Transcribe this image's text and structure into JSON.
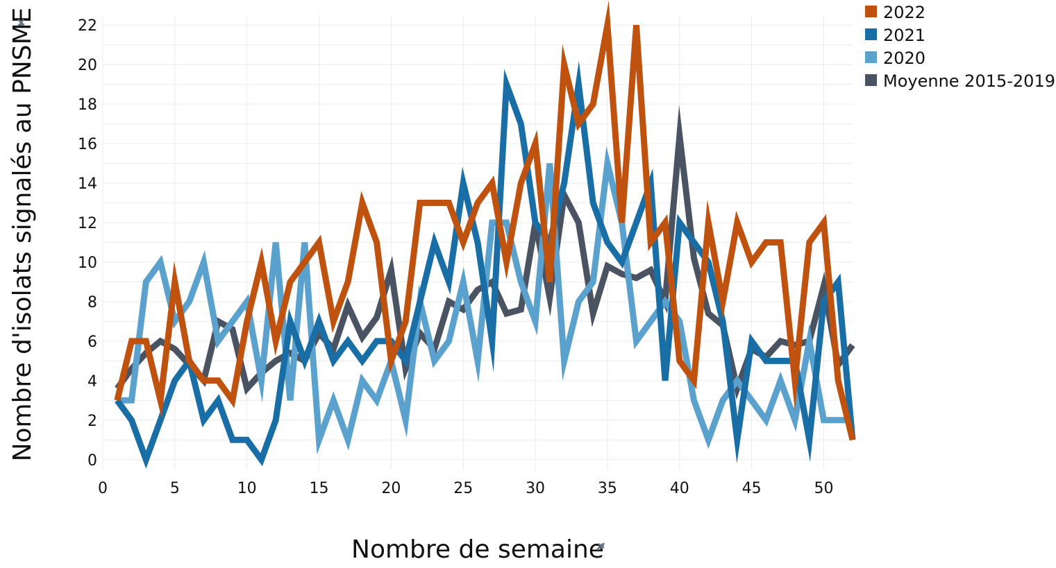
{
  "chart_data": {
    "type": "line",
    "xlabel": "Nombre de semaine",
    "ylabel": "Nombre d'isolats signalés au PNSME",
    "xlim": [
      0,
      52
    ],
    "ylim": [
      -0.5,
      22.5
    ],
    "x_ticks": [
      0,
      5,
      10,
      15,
      20,
      25,
      30,
      35,
      40,
      45,
      50
    ],
    "y_ticks": [
      0,
      2,
      4,
      6,
      8,
      10,
      12,
      14,
      16,
      18,
      20,
      22
    ],
    "grid": true,
    "legend_position": "top-right",
    "x": [
      1,
      2,
      3,
      4,
      5,
      6,
      7,
      8,
      9,
      10,
      11,
      12,
      13,
      14,
      15,
      16,
      17,
      18,
      19,
      20,
      21,
      22,
      23,
      24,
      25,
      26,
      27,
      28,
      29,
      30,
      31,
      32,
      33,
      34,
      35,
      36,
      37,
      38,
      39,
      40,
      41,
      42,
      43,
      44,
      45,
      46,
      47,
      48,
      49,
      50,
      51,
      52
    ],
    "series": [
      {
        "name": "Moyenne 2015-2019",
        "color": "#4a5362",
        "values": [
          3.6,
          4.6,
          5.4,
          6,
          5.6,
          4.8,
          4,
          7,
          6.6,
          3.6,
          4.4,
          5,
          5.4,
          5,
          6.4,
          5.6,
          7.8,
          6.2,
          7.2,
          9.6,
          4.6,
          6.4,
          5.6,
          8,
          7.6,
          8.6,
          9,
          7.4,
          7.6,
          12,
          8.2,
          13.4,
          12,
          7.4,
          9.8,
          9.4,
          9.2,
          9.6,
          8,
          16.4,
          10.2,
          7.4,
          6.8,
          3.6,
          5.6,
          5.2,
          6,
          5.8,
          6,
          8.8,
          4.8,
          5.8
        ]
      },
      {
        "name": "2020",
        "color": "#5ba1cd",
        "values": [
          3,
          3,
          9,
          10,
          7,
          8,
          10,
          6,
          7,
          8,
          4,
          11,
          3,
          11,
          1,
          3,
          1,
          4,
          3,
          5,
          2,
          8,
          5,
          6,
          9,
          5,
          12,
          12,
          9,
          7,
          15,
          5,
          8,
          9,
          15,
          12,
          6,
          7,
          8,
          7,
          3,
          1,
          3,
          4,
          3,
          2,
          4,
          2,
          6,
          2,
          2,
          2
        ]
      },
      {
        "name": "2021",
        "color": "#1a6ea6",
        "values": [
          3,
          2,
          0,
          2,
          4,
          5,
          2,
          3,
          1,
          1,
          0,
          2,
          7,
          5,
          7,
          5,
          6,
          5,
          6,
          6,
          5,
          8,
          11,
          9,
          14,
          11,
          6,
          19,
          17,
          12,
          11,
          14,
          19,
          13,
          11,
          10,
          12,
          14,
          4,
          12,
          11,
          10,
          7,
          1,
          6,
          5,
          5,
          5,
          1,
          8,
          9,
          1
        ]
      },
      {
        "name": "2022",
        "color": "#c0520f",
        "values": [
          3,
          6,
          6,
          3,
          9,
          5,
          4,
          4,
          3,
          7,
          10,
          6,
          9,
          10,
          11,
          7,
          9,
          13,
          11,
          5,
          7,
          13,
          13,
          13,
          11,
          13,
          14,
          10,
          14,
          16,
          9,
          20,
          17,
          18,
          22,
          12,
          22,
          11,
          12,
          5,
          4,
          12,
          8,
          12,
          10,
          11,
          11,
          4,
          11,
          12,
          4,
          1
        ]
      }
    ]
  }
}
